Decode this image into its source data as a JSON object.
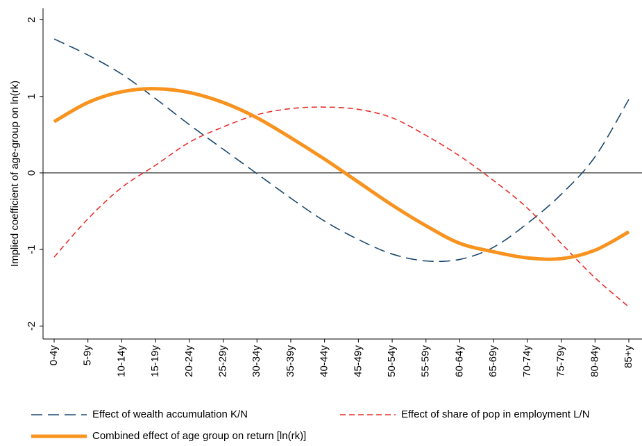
{
  "chart_data": {
    "type": "line",
    "y_label": "Implied coefficient of age-group on ln(rk)",
    "categories": [
      "0-4y",
      "5-9y",
      "10-14y",
      "15-19y",
      "20-24y",
      "25-29y",
      "30-34y",
      "35-39y",
      "40-44y",
      "45-49y",
      "50-54y",
      "55-59y",
      "60-64y",
      "65-69y",
      "70-74y",
      "75-79y",
      "80-84y",
      "85+y"
    ],
    "series": [
      {
        "name": "Effect of wealth accumulation K/N",
        "color": "#1a476f",
        "dash": "16,8",
        "width": 1.6,
        "values": [
          1.75,
          1.54,
          1.29,
          0.97,
          0.63,
          0.31,
          -0.01,
          -0.33,
          -0.63,
          -0.87,
          -1.06,
          -1.15,
          -1.13,
          -0.97,
          -0.66,
          -0.28,
          0.21,
          0.96
        ]
      },
      {
        "name": "Effect of share of pop in employment L/N",
        "color": "#e8302a",
        "dash": "8,5",
        "width": 1.6,
        "values": [
          -1.1,
          -0.6,
          -0.19,
          0.1,
          0.4,
          0.6,
          0.76,
          0.84,
          0.86,
          0.83,
          0.72,
          0.49,
          0.22,
          -0.1,
          -0.46,
          -0.92,
          -1.37,
          -1.75
        ]
      },
      {
        "name": "Combined effect of age group on return [ln(rk)]",
        "color": "#f7931e",
        "dash": "none",
        "width": 5,
        "values": [
          0.67,
          0.92,
          1.06,
          1.1,
          1.05,
          0.92,
          0.72,
          0.46,
          0.18,
          -0.12,
          -0.42,
          -0.69,
          -0.92,
          -1.03,
          -1.11,
          -1.12,
          -1.01,
          -0.77
        ]
      }
    ],
    "ylim": [
      -2.17,
      2.15
    ],
    "yticks": [
      -2,
      -1,
      0,
      1,
      2
    ]
  }
}
